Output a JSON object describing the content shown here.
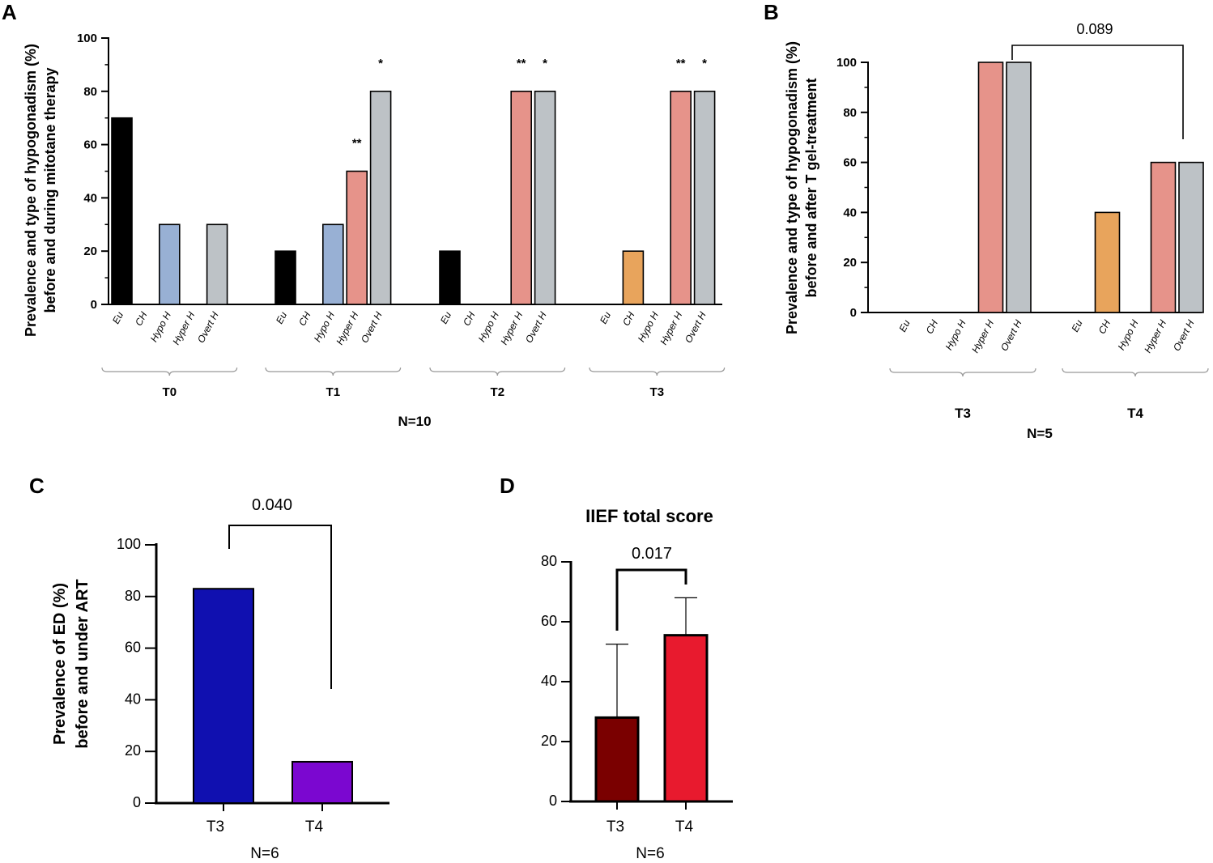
{
  "chart_data": [
    {
      "panel": "A",
      "type": "bar",
      "ylabel_line1": "Prevalence and type of hypogonadism (%)",
      "ylabel_line2": "before and during mitotane therapy",
      "ylim": [
        0,
        100
      ],
      "yticks": [
        "0",
        "20",
        "40",
        "60",
        "80",
        "100"
      ],
      "categories": [
        "Eu",
        "CH",
        "Hypo H",
        "Hyper H",
        "Overt H"
      ],
      "groups": [
        {
          "label": "T0",
          "values": [
            70,
            0,
            30,
            0,
            30
          ],
          "stars": [
            "",
            "",
            "",
            "",
            ""
          ]
        },
        {
          "label": "T1",
          "values": [
            20,
            0,
            30,
            50,
            80
          ],
          "stars": [
            "",
            "",
            "",
            "**",
            "*"
          ]
        },
        {
          "label": "T2",
          "values": [
            20,
            0,
            0,
            80,
            80
          ],
          "stars": [
            "",
            "",
            "",
            "**",
            "*"
          ]
        },
        {
          "label": "T3",
          "values": [
            0,
            20,
            0,
            80,
            80
          ],
          "stars": [
            "",
            "",
            "",
            "**",
            "*"
          ]
        }
      ],
      "n_label": "N=10"
    },
    {
      "panel": "B",
      "type": "bar",
      "ylabel_line1": "Prevalence and type of hypogonadism (%)",
      "ylabel_line2": "before and after T gel-treatment",
      "ylim": [
        0,
        100
      ],
      "yticks": [
        "0",
        "20",
        "40",
        "60",
        "80",
        "100"
      ],
      "categories": [
        "Eu",
        "CH",
        "Hypo H",
        "Hyper H",
        "Overt H"
      ],
      "groups": [
        {
          "label": "T3",
          "values": [
            0,
            0,
            0,
            100,
            100
          ]
        },
        {
          "label": "T4",
          "values": [
            0,
            40,
            0,
            60,
            60
          ]
        }
      ],
      "pvalue": "0.089",
      "n_label": "N=5"
    },
    {
      "panel": "C",
      "type": "bar",
      "ylabel_line1": "Prevalence of ED (%)",
      "ylabel_line2": "before and under ART",
      "ylim": [
        0,
        100
      ],
      "yticks": [
        "0",
        "20",
        "40",
        "60",
        "80",
        "100"
      ],
      "categories": [
        "T3",
        "T4"
      ],
      "values": [
        83,
        16
      ],
      "pvalue": "0.040",
      "n_label": "N=6"
    },
    {
      "panel": "D",
      "type": "bar",
      "title": "IIEF total score",
      "ylim": [
        0,
        80
      ],
      "yticks": [
        "0",
        "20",
        "40",
        "60",
        "80"
      ],
      "categories": [
        "T3",
        "T4"
      ],
      "values": [
        28,
        55.5
      ],
      "error_upper": [
        52.5,
        68
      ],
      "pvalue": "0.017",
      "n_label": "N=6"
    }
  ],
  "colors": {
    "Eu": "#000000",
    "CH": "#e8a45c",
    "Hypo H": "#98b0d4",
    "Hyper H": "#e6938a",
    "Overt H": "#bdc2c6",
    "C_T3": "#1010b0",
    "C_T4": "#7b07d0",
    "D_T3": "#7a0000",
    "D_T4": "#e81a2e"
  }
}
